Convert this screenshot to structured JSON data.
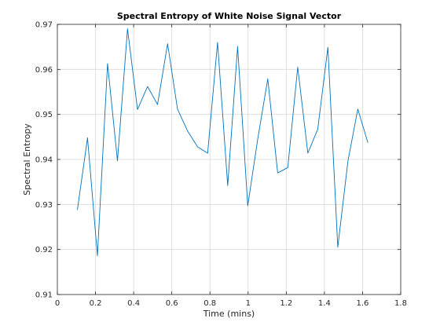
{
  "chart_data": {
    "type": "line",
    "title": "Spectral Entropy of White Noise Signal Vector",
    "xlabel": "Time (mins)",
    "ylabel": "Spectral Entropy",
    "xlim": [
      0,
      1.8
    ],
    "ylim": [
      0.91,
      0.97
    ],
    "xticks": [
      0,
      0.2,
      0.4,
      0.6,
      0.8,
      1,
      1.2,
      1.4,
      1.6,
      1.8
    ],
    "xtick_labels": [
      "0",
      "0.2",
      "0.4",
      "0.6",
      "0.8",
      "1",
      "1.2",
      "1.4",
      "1.6",
      "1.8"
    ],
    "yticks": [
      0.91,
      0.92,
      0.93,
      0.94,
      0.95,
      0.96,
      0.97
    ],
    "ytick_labels": [
      "0.91",
      "0.92",
      "0.93",
      "0.94",
      "0.95",
      "0.96",
      "0.97"
    ],
    "grid": true,
    "line_color": "#0072BD",
    "series": [
      {
        "x": [
          0.105,
          0.158,
          0.21,
          0.263,
          0.315,
          0.368,
          0.42,
          0.473,
          0.525,
          0.578,
          0.63,
          0.683,
          0.735,
          0.788,
          0.84,
          0.893,
          0.945,
          0.998,
          1.05,
          1.103,
          1.155,
          1.208,
          1.26,
          1.313,
          1.365,
          1.418,
          1.47,
          1.523,
          1.575,
          1.628
        ],
        "y": [
          0.9288,
          0.9448,
          0.9186,
          0.9613,
          0.9397,
          0.969,
          0.9511,
          0.9562,
          0.9522,
          0.9657,
          0.9512,
          0.9463,
          0.9428,
          0.9414,
          0.966,
          0.9342,
          0.9651,
          0.9297,
          0.9444,
          0.9579,
          0.937,
          0.9382,
          0.9605,
          0.9414,
          0.9467,
          0.9649,
          0.9205,
          0.9396,
          0.9512,
          0.9437
        ]
      }
    ]
  }
}
